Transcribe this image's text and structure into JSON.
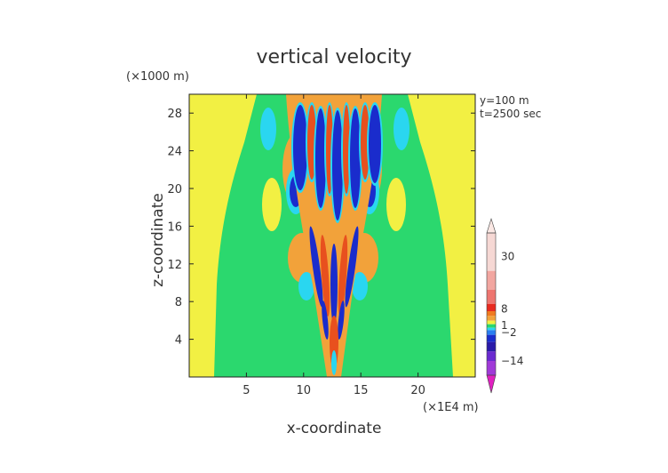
{
  "chart_data": {
    "type": "heatmap",
    "title": "vertical velocity",
    "xlabel": "x-coordinate",
    "ylabel": "z-coordinate",
    "x_unit": "(×1E4 m)",
    "y_unit": "(×1000 m)",
    "annotations": [
      "y=100 m",
      "t=2500 sec"
    ],
    "xlim": [
      0,
      25
    ],
    "ylim": [
      0,
      30
    ],
    "x_ticks": [
      5,
      10,
      15,
      20
    ],
    "y_ticks": [
      4,
      8,
      12,
      16,
      20,
      24,
      28
    ],
    "colorbar": {
      "labels": [
        "30",
        "8",
        "1",
        "−2",
        "−14"
      ],
      "label_values": [
        30,
        8,
        1,
        -2,
        -14
      ],
      "range": [
        -20,
        40
      ],
      "colors": {
        "background": "#f2f043",
        "positive_weak": "#2bd86e",
        "positive_strong": "#f2a23a",
        "positive_peak": "#e8501e",
        "negative_weak": "#2ad6f0",
        "negative_strong": "#1a2ccc",
        "negative_peak": "#8a2bd8"
      }
    }
  }
}
